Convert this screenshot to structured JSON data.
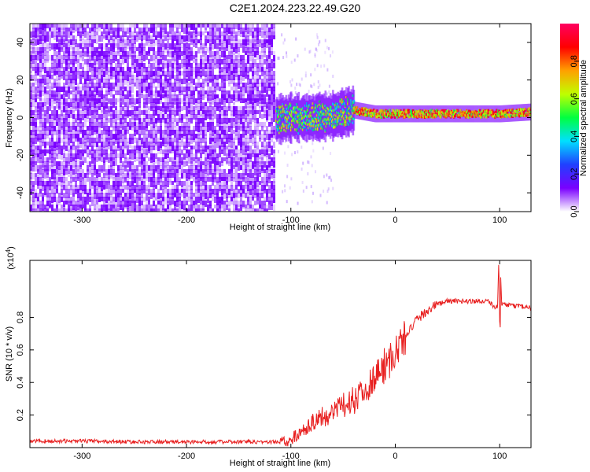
{
  "title": "C2E1.2024.223.22.49.G20",
  "chart_data": [
    {
      "type": "heatmap",
      "xlabel": "Height of straight line (km)",
      "ylabel": "Frequency (Hz)",
      "xlim": [
        -350,
        130
      ],
      "ylim": [
        -50,
        50
      ],
      "xticks": [
        -300,
        -200,
        -100,
        0,
        100
      ],
      "xtick_labels": [
        "-300",
        "-200",
        "-100",
        "0",
        "100"
      ],
      "yticks": [
        -40,
        -20,
        0,
        20,
        40
      ],
      "ytick_labels": [
        "-40",
        "-20",
        "0",
        "20",
        "40"
      ],
      "colorbar": {
        "label": "Normalized spectral amplitude",
        "range": [
          0,
          1
        ],
        "ticks": [
          0.0,
          0.2,
          0.4,
          0.6,
          0.8
        ],
        "tick_labels": [
          "0.0",
          "0.2",
          "0.4",
          "0.6",
          "0.8"
        ],
        "colors": [
          "#ffffff",
          "#7a00ff",
          "#2040ff",
          "#00e0ff",
          "#00ff40",
          "#c0ff00",
          "#ffa000",
          "#ff0000",
          "#ff0060"
        ]
      },
      "regions": [
        {
          "x": [
            -350,
            -115
          ],
          "content": "broadband noise across all frequencies",
          "color": "#7a00ff"
        },
        {
          "x": [
            -115,
            -40
          ],
          "content": "signal emerging near 0 Hz",
          "center_hz": 0
        },
        {
          "x": [
            -40,
            130
          ],
          "content": "narrow carrier line",
          "center_hz": 2
        }
      ],
      "carrier_line": {
        "x": [
          -115,
          -100,
          -80,
          -60,
          -40,
          -20,
          0,
          20,
          40,
          60,
          80,
          100,
          130
        ],
        "y": [
          -1,
          0,
          0,
          1,
          4,
          2,
          2,
          2,
          2,
          2,
          2,
          2,
          3
        ]
      }
    },
    {
      "type": "line",
      "xlabel": "Height of straight line (km)",
      "ylabel": "SNR (10 * v/v)",
      "yscale_label": "(x10",
      "yscale_exp": "4",
      "yscale_suffix": ")",
      "xlim": [
        -350,
        130
      ],
      "ylim": [
        0,
        1.15
      ],
      "xticks": [
        -300,
        -200,
        -100,
        0,
        100
      ],
      "xtick_labels": [
        "-300",
        "-200",
        "-100",
        "0",
        "100"
      ],
      "yticks": [
        0.2,
        0.4,
        0.6,
        0.8
      ],
      "ytick_labels": [
        "0.2",
        "0.4",
        "0.6",
        "0.8"
      ],
      "series": [
        {
          "color": "#e82020",
          "x": [
            -350,
            -300,
            -250,
            -200,
            -150,
            -110,
            -100,
            -90,
            -80,
            -70,
            -60,
            -50,
            -40,
            -30,
            -20,
            -10,
            0,
            10,
            20,
            30,
            40,
            50,
            60,
            70,
            80,
            90,
            95,
            100,
            105,
            110,
            120,
            130
          ],
          "y": [
            0.04,
            0.04,
            0.035,
            0.035,
            0.035,
            0.035,
            0.05,
            0.1,
            0.15,
            0.18,
            0.22,
            0.26,
            0.3,
            0.36,
            0.42,
            0.5,
            0.58,
            0.68,
            0.78,
            0.84,
            0.88,
            0.9,
            0.9,
            0.9,
            0.9,
            0.9,
            0.86,
            0.88,
            0.88,
            0.87,
            0.87,
            0.86
          ]
        }
      ]
    }
  ]
}
